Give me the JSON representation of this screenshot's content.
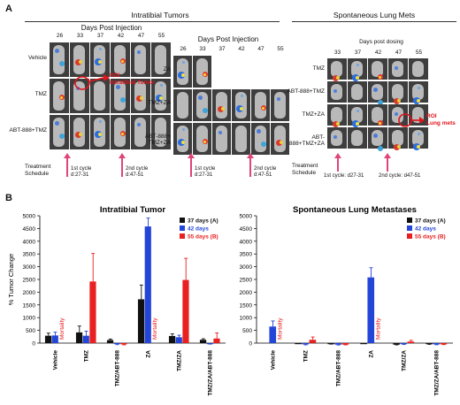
{
  "panel_a": {
    "letter": "A",
    "intratibial": {
      "title": "Intratibial Tumors",
      "left": {
        "days_title": "Days Post Injection",
        "days": [
          "26",
          "33",
          "37",
          "42",
          "47",
          "55"
        ],
        "rows": [
          "Vehicle",
          "TMZ",
          "ABT-888+TMZ"
        ],
        "roi_label": "ROI\nIntratibial Tumor",
        "schedule_label": "Treatment\nSchedule",
        "cycle1": "1st cycle\nd:27-31",
        "cycle2": "2nd cycle\nd:47-51"
      },
      "right": {
        "days_title": "Days Post Injection",
        "days": [
          "26",
          "33",
          "37",
          "42",
          "47",
          "55"
        ],
        "rows": [
          "ZA",
          "TMZ+ZA",
          "ABT-888+\nTMZ+ZA"
        ],
        "cycle1": "1st cycle\nd:27-31",
        "cycle2": "2nd cycle\nd:47-51"
      }
    },
    "lung": {
      "title": "Spontaneous Lung Mets",
      "days_title": "Days post dosing",
      "days": [
        "33",
        "37",
        "42",
        "47",
        "55"
      ],
      "rows": [
        "TMZ",
        "ABT-888+TMZ",
        "TMZ+ZA",
        "ABT-888+TMZ+ZA"
      ],
      "roi_label": "ROI\nLung mets",
      "schedule_label": "Treatment\nSchedule",
      "cycle1": "1st cycle: d27-31",
      "cycle2": "2nd cycle: d47-51"
    },
    "colors": {
      "arrow": "#e0447a",
      "roi": "#e0141b"
    }
  },
  "panel_b": {
    "letter": "B",
    "colors": {
      "d37": "#111111",
      "d42": "#2345d8",
      "d55": "#e8201f",
      "mortality": "#e8201f"
    }
  },
  "chart_data": [
    {
      "type": "bar",
      "title": "Intratibial Tumor",
      "ylabel": "% Tumor Change",
      "xlabel": "",
      "ylim": [
        0,
        5000
      ],
      "yticks": [
        "0",
        "500",
        "1000",
        "1500",
        "2000",
        "2500",
        "3000",
        "3500",
        "4000",
        "4500",
        "5000"
      ],
      "categories": [
        "Vehicle",
        "TMZ",
        "TMZ/ABT-888",
        "ZA",
        "TMZ/ZA",
        "TMZ/ZA/ABT-888"
      ],
      "legend": "top-right",
      "annotation": "Mortality",
      "series": [
        {
          "name": "37 days (A)",
          "values": [
            290,
            420,
            120,
            1720,
            280,
            130
          ],
          "errors": [
            100,
            250,
            40,
            560,
            80,
            40
          ]
        },
        {
          "name": "42 days",
          "values": [
            300,
            290,
            -40,
            4580,
            230,
            -20
          ],
          "errors": [
            130,
            180,
            20,
            330,
            80,
            20
          ]
        },
        {
          "name": "55 days (B)",
          "values": [
            null,
            2420,
            -50,
            null,
            2480,
            180
          ],
          "errors": [
            null,
            1100,
            20,
            null,
            850,
            220
          ]
        }
      ]
    },
    {
      "type": "bar",
      "title": "Spontaneous Lung Metastases",
      "ylabel": "",
      "xlabel": "",
      "ylim": [
        0,
        5000
      ],
      "yticks": [
        "0",
        "500",
        "1000",
        "1500",
        "2000",
        "2500",
        "3000",
        "3500",
        "4000",
        "4500",
        "5000"
      ],
      "categories": [
        "Vehicle",
        "TMZ",
        "TMZ/ABT-888",
        "ZA",
        "TMZ/ZA",
        "TMZ/ZA/ABT-888"
      ],
      "legend": "top-right",
      "annotation": "Mortality",
      "series": [
        {
          "name": "37 days (A)",
          "values": [
            null,
            0,
            -30,
            0,
            -60,
            -40
          ],
          "errors": [
            null,
            0,
            10,
            0,
            10,
            10
          ]
        },
        {
          "name": "42 days",
          "values": [
            650,
            -50,
            -60,
            2580,
            -40,
            -50
          ],
          "errors": [
            220,
            20,
            15,
            380,
            15,
            15
          ]
        },
        {
          "name": "55 days (B)",
          "values": [
            null,
            130,
            -60,
            null,
            60,
            -50
          ],
          "errors": [
            null,
            110,
            10,
            null,
            50,
            10
          ]
        }
      ]
    }
  ]
}
